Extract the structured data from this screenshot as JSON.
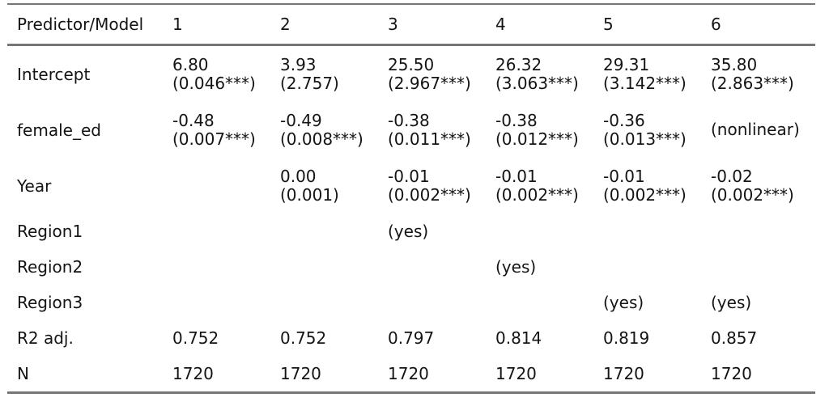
{
  "page": {
    "background": "#ffffff"
  },
  "table": {
    "columns": [
      "Predictor/Model",
      "1",
      "2",
      "3",
      "4",
      "5",
      "6"
    ],
    "rows": [
      {
        "label": "Intercept",
        "cells": [
          [
            "6.80",
            "(0.046***)"
          ],
          [
            "3.93",
            "(2.757)"
          ],
          [
            "25.50",
            "(2.967***)"
          ],
          [
            "26.32",
            "(3.063***)"
          ],
          [
            "29.31",
            "(3.142***)"
          ],
          [
            "35.80",
            "(2.863***)"
          ]
        ]
      },
      {
        "label": "female_ed",
        "cells": [
          [
            "-0.48",
            "(0.007***)"
          ],
          [
            "-0.49",
            "(0.008***)"
          ],
          [
            "-0.38",
            "(0.011***)"
          ],
          [
            "-0.38",
            "(0.012***)"
          ],
          [
            "-0.36",
            "(0.013***)"
          ],
          [
            "(nonlinear)"
          ]
        ]
      },
      {
        "label": "Year",
        "cells": [
          [],
          [
            "0.00",
            "(0.001)"
          ],
          [
            "-0.01",
            "(0.002***)"
          ],
          [
            "-0.01",
            "(0.002***)"
          ],
          [
            "-0.01",
            "(0.002***)"
          ],
          [
            "-0.02",
            "(0.002***)"
          ]
        ]
      },
      {
        "label": "Region1",
        "cells": [
          [],
          [],
          [
            "(yes)"
          ],
          [],
          [],
          []
        ]
      },
      {
        "label": "Region2",
        "cells": [
          [],
          [],
          [],
          [
            "(yes)"
          ],
          [],
          []
        ]
      },
      {
        "label": "Region3",
        "cells": [
          [],
          [],
          [],
          [],
          [
            "(yes)"
          ],
          [
            "(yes)"
          ]
        ]
      },
      {
        "label": "R2 adj.",
        "cells": [
          [
            "0.752"
          ],
          [
            "0.752"
          ],
          [
            "0.797"
          ],
          [
            "0.814"
          ],
          [
            "0.819"
          ],
          [
            "0.857"
          ]
        ]
      },
      {
        "label": "N",
        "cells": [
          [
            "1720"
          ],
          [
            "1720"
          ],
          [
            "1720"
          ],
          [
            "1720"
          ],
          [
            "1720"
          ],
          [
            "1720"
          ]
        ]
      }
    ],
    "style": {
      "rule_color": "#767676",
      "text_color": "#141414"
    }
  }
}
